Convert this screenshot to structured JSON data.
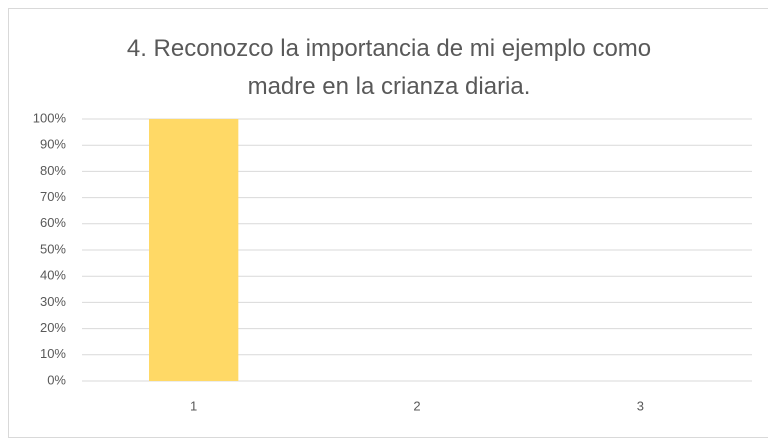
{
  "chart_data": {
    "type": "bar",
    "title": "4. Reconozco la importancia de mi ejemplo como madre en la crianza diaria.",
    "categories": [
      "1",
      "2",
      "3"
    ],
    "values": [
      100,
      0,
      0
    ],
    "color": "#ffd966",
    "ylim": [
      0,
      100
    ],
    "yticks": [
      {
        "value": 0,
        "label": "0%"
      },
      {
        "value": 10,
        "label": "10%"
      },
      {
        "value": 20,
        "label": "20%"
      },
      {
        "value": 30,
        "label": "30%"
      },
      {
        "value": 40,
        "label": "40%"
      },
      {
        "value": 50,
        "label": "50%"
      },
      {
        "value": 60,
        "label": "60%"
      },
      {
        "value": 70,
        "label": "70%"
      },
      {
        "value": 80,
        "label": "80%"
      },
      {
        "value": 90,
        "label": "90%"
      },
      {
        "value": 100,
        "label": "100%"
      }
    ],
    "grid": true
  }
}
